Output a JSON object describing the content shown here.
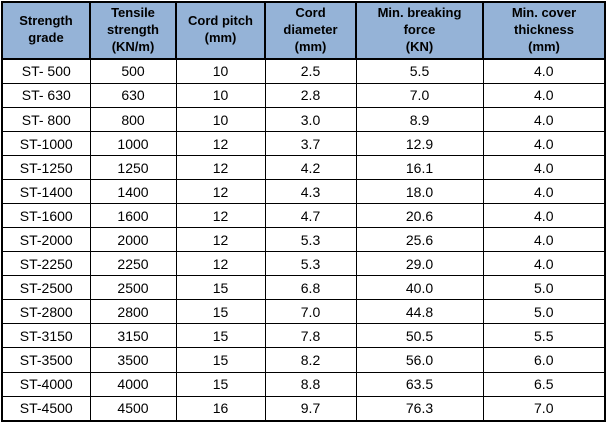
{
  "chart_data": {
    "type": "table",
    "title": "",
    "columns": [
      "Strength\ngrade",
      "Tensile\nstrength\n(KN/m)",
      "Cord pitch\n(mm)",
      "Cord\ndiameter\n(mm)",
      "Min. breaking\nforce\n(KN)",
      "Min. cover\nthickness\n(mm)"
    ],
    "rows": [
      [
        "ST- 500",
        "500",
        "10",
        "2.5",
        "5.5",
        "4.0"
      ],
      [
        "ST- 630",
        "630",
        "10",
        "2.8",
        "7.0",
        "4.0"
      ],
      [
        "ST- 800",
        "800",
        "10",
        "3.0",
        "8.9",
        "4.0"
      ],
      [
        "ST-1000",
        "1000",
        "12",
        "3.7",
        "12.9",
        "4.0"
      ],
      [
        "ST-1250",
        "1250",
        "12",
        "4.2",
        "16.1",
        "4.0"
      ],
      [
        "ST-1400",
        "1400",
        "12",
        "4.3",
        "18.0",
        "4.0"
      ],
      [
        "ST-1600",
        "1600",
        "12",
        "4.7",
        "20.6",
        "4.0"
      ],
      [
        "ST-2000",
        "2000",
        "12",
        "5.3",
        "25.6",
        "4.0"
      ],
      [
        "ST-2250",
        "2250",
        "12",
        "5.3",
        "29.0",
        "4.0"
      ],
      [
        "ST-2500",
        "2500",
        "15",
        "6.8",
        "40.0",
        "5.0"
      ],
      [
        "ST-2800",
        "2800",
        "15",
        "7.0",
        "44.8",
        "5.0"
      ],
      [
        "ST-3150",
        "3150",
        "15",
        "7.8",
        "50.5",
        "5.5"
      ],
      [
        "ST-3500",
        "3500",
        "15",
        "8.2",
        "56.0",
        "6.0"
      ],
      [
        "ST-4000",
        "4000",
        "15",
        "8.8",
        "63.5",
        "6.5"
      ],
      [
        "ST-4500",
        "4500",
        "16",
        "9.7",
        "76.3",
        "7.0"
      ]
    ]
  },
  "colors": {
    "header_bg": "#95B3D7",
    "grid": "#000000",
    "text": "#000000",
    "cell_bg": "#FFFFFF"
  }
}
